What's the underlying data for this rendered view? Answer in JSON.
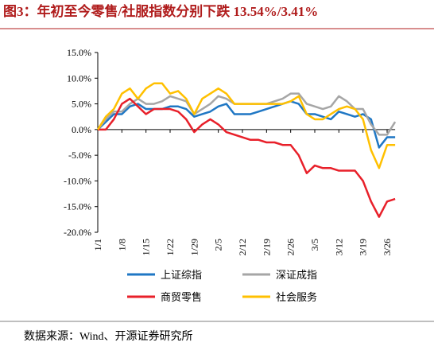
{
  "title": "图3：年初至今零售/社服指数分别下跌 13.54%/3.41%",
  "source": "数据来源：Wind、开源证券研究所",
  "chart_data": {
    "type": "line",
    "categories": [
      "1/1",
      null,
      null,
      "1/8",
      null,
      null,
      "1/15",
      null,
      null,
      "1/22",
      null,
      null,
      "1/29",
      null,
      null,
      "2/5",
      null,
      null,
      "2/12",
      null,
      null,
      "2/19",
      null,
      null,
      "2/26",
      null,
      null,
      "3/5",
      null,
      null,
      "3/12",
      null,
      null,
      "3/19",
      null,
      null,
      "3/26",
      null
    ],
    "ylim": [
      -20,
      15
    ],
    "yticks": [
      {
        "value": -20,
        "label": "-20.0%"
      },
      {
        "value": -15,
        "label": "-15.0%"
      },
      {
        "value": -10,
        "label": "-10.0%"
      },
      {
        "value": -5,
        "label": "-5.0%"
      },
      {
        "value": 0,
        "label": "0.0%"
      },
      {
        "value": 5,
        "label": "5.0%"
      },
      {
        "value": 10,
        "label": "10.0%"
      },
      {
        "value": 15,
        "label": "15.0%"
      }
    ],
    "series": [
      {
        "name": "上证综指",
        "color": "#1f77c4",
        "values": [
          0,
          1.5,
          3,
          3,
          4.5,
          5,
          4,
          4,
          4,
          4.5,
          4.5,
          4,
          2.5,
          3,
          3.5,
          4.5,
          5,
          3,
          3,
          3,
          3.5,
          4,
          4.5,
          5,
          5.5,
          5,
          3,
          3,
          2.5,
          2,
          3.5,
          3,
          2.5,
          3,
          2,
          -3.5,
          -1.5,
          -1.5
        ]
      },
      {
        "name": "深证成指",
        "color": "#a6a6a6",
        "values": [
          0,
          2,
          3.5,
          3.5,
          5,
          6,
          5,
          5,
          5.5,
          6.5,
          6,
          5.5,
          3,
          4,
          5,
          6.5,
          6,
          5,
          5,
          5,
          5,
          5,
          5.5,
          6,
          7,
          7,
          5,
          4.5,
          4,
          4.5,
          6.5,
          5.5,
          4,
          4,
          1,
          -1,
          -1,
          1.5
        ]
      },
      {
        "name": "商贸零售",
        "color": "#e8202a",
        "values": [
          0,
          0,
          2,
          5,
          6,
          4.5,
          3,
          4,
          4,
          4,
          3.5,
          2,
          -0.5,
          1,
          2,
          1,
          -0.5,
          -1,
          -1.5,
          -2,
          -2,
          -2.5,
          -2.5,
          -3,
          -3,
          -5,
          -8.5,
          -7,
          -7.5,
          -7.5,
          -8,
          -8,
          -8,
          -10,
          -14,
          -17,
          -14,
          -13.5
        ]
      },
      {
        "name": "社会服务",
        "color": "#ffc000",
        "values": [
          0,
          2.5,
          4,
          7,
          8,
          6,
          8,
          9,
          9,
          7,
          7.5,
          6,
          3,
          6,
          7,
          8,
          7,
          5,
          5,
          5,
          5,
          5,
          5,
          5,
          5.5,
          6.5,
          3,
          2,
          2,
          3,
          4,
          4.5,
          4,
          2,
          -4,
          -7.5,
          -3,
          -3
        ]
      }
    ]
  }
}
